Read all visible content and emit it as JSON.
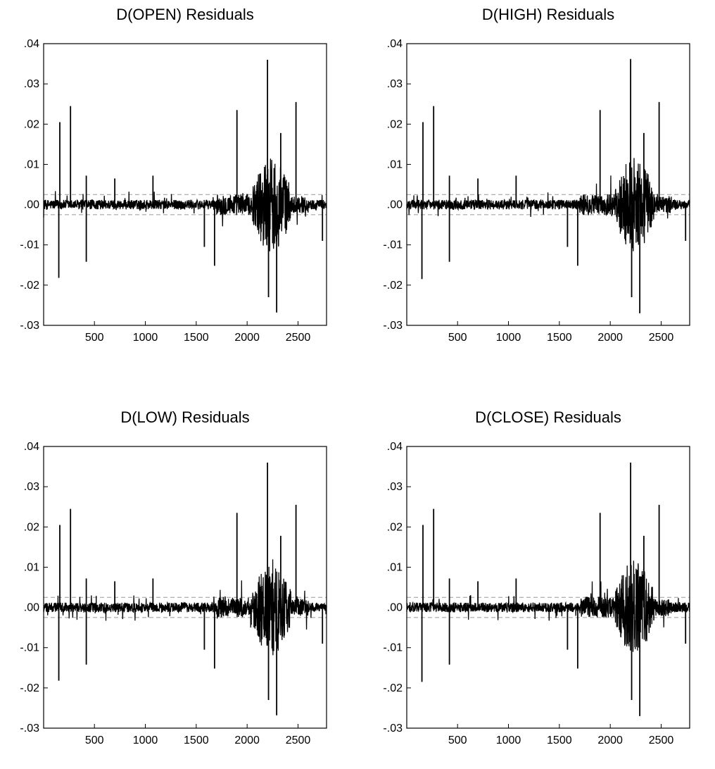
{
  "chart_data": [
    {
      "type": "line",
      "title": "D(OPEN) Residuals",
      "xlabel": "",
      "ylabel": "",
      "xlim": [
        1,
        2780
      ],
      "ylim": [
        -0.03,
        0.04
      ],
      "x_ticks": [
        500,
        1000,
        1500,
        2000,
        2500
      ],
      "x_tick_labels": [
        "500",
        "1000",
        "1500",
        "2000",
        "2500"
      ],
      "y_ticks": [
        -0.03,
        -0.02,
        -0.01,
        0.0,
        0.01,
        0.02,
        0.03,
        0.04
      ],
      "y_tick_labels": [
        "-.03",
        "-.02",
        "-.01",
        ".00",
        ".01",
        ".02",
        ".03",
        ".04"
      ],
      "reference_lines": [
        0.0025,
        -0.0025
      ],
      "series_color": "#000000",
      "reference_color": "#999999",
      "grid": false,
      "spikes": [
        [
          160,
          0.0205
        ],
        [
          150,
          -0.0182
        ],
        [
          265,
          0.0245
        ],
        [
          420,
          0.0072
        ],
        [
          420,
          -0.0142
        ],
        [
          700,
          0.0065
        ],
        [
          1075,
          0.0072
        ],
        [
          1580,
          -0.0105
        ],
        [
          1680,
          -0.0152
        ],
        [
          1900,
          0.0235
        ],
        [
          2200,
          0.036
        ],
        [
          2210,
          -0.023
        ],
        [
          2290,
          -0.0268
        ],
        [
          2330,
          0.0178
        ],
        [
          2480,
          0.0255
        ],
        [
          2740,
          -0.009
        ]
      ],
      "high_volatility_range": [
        2050,
        2430
      ],
      "high_volatility_amplitude": 0.012,
      "low_volatility_amplitude": 0.0012
    },
    {
      "type": "line",
      "title": "D(HIGH) Residuals",
      "xlabel": "",
      "ylabel": "",
      "xlim": [
        1,
        2780
      ],
      "ylim": [
        -0.03,
        0.04
      ],
      "x_ticks": [
        500,
        1000,
        1500,
        2000,
        2500
      ],
      "x_tick_labels": [
        "500",
        "1000",
        "1500",
        "2000",
        "2500"
      ],
      "y_ticks": [
        -0.03,
        -0.02,
        -0.01,
        0.0,
        0.01,
        0.02,
        0.03,
        0.04
      ],
      "y_tick_labels": [
        "-.03",
        "-.02",
        "-.01",
        ".00",
        ".01",
        ".02",
        ".03",
        ".04"
      ],
      "reference_lines": [
        0.0025,
        -0.0025
      ],
      "series_color": "#000000",
      "reference_color": "#999999",
      "grid": false,
      "spikes": [
        [
          160,
          0.0205
        ],
        [
          150,
          -0.0185
        ],
        [
          265,
          0.0245
        ],
        [
          420,
          0.0072
        ],
        [
          420,
          -0.0142
        ],
        [
          700,
          0.0065
        ],
        [
          1075,
          0.0072
        ],
        [
          1580,
          -0.0105
        ],
        [
          1680,
          -0.0152
        ],
        [
          1900,
          0.0235
        ],
        [
          2200,
          0.0362
        ],
        [
          2210,
          -0.023
        ],
        [
          2290,
          -0.027
        ],
        [
          2330,
          0.0178
        ],
        [
          2480,
          0.0255
        ],
        [
          2740,
          -0.009
        ]
      ],
      "high_volatility_range": [
        2050,
        2430
      ],
      "high_volatility_amplitude": 0.012,
      "low_volatility_amplitude": 0.0012
    },
    {
      "type": "line",
      "title": "D(LOW) Residuals",
      "xlabel": "",
      "ylabel": "",
      "xlim": [
        1,
        2780
      ],
      "ylim": [
        -0.03,
        0.04
      ],
      "x_ticks": [
        500,
        1000,
        1500,
        2000,
        2500
      ],
      "x_tick_labels": [
        "500",
        "1000",
        "1500",
        "2000",
        "2500"
      ],
      "y_ticks": [
        -0.03,
        -0.02,
        -0.01,
        0.0,
        0.01,
        0.02,
        0.03,
        0.04
      ],
      "y_tick_labels": [
        "-.03",
        "-.02",
        "-.01",
        ".00",
        ".01",
        ".02",
        ".03",
        ".04"
      ],
      "reference_lines": [
        0.0025,
        -0.0025
      ],
      "series_color": "#000000",
      "reference_color": "#999999",
      "grid": false,
      "spikes": [
        [
          160,
          0.0205
        ],
        [
          150,
          -0.0182
        ],
        [
          265,
          0.0245
        ],
        [
          420,
          0.0072
        ],
        [
          420,
          -0.0142
        ],
        [
          700,
          0.0065
        ],
        [
          1075,
          0.0072
        ],
        [
          1580,
          -0.0105
        ],
        [
          1680,
          -0.0152
        ],
        [
          1900,
          0.0235
        ],
        [
          2200,
          0.036
        ],
        [
          2210,
          -0.023
        ],
        [
          2290,
          -0.0268
        ],
        [
          2330,
          0.0178
        ],
        [
          2480,
          0.0255
        ],
        [
          2740,
          -0.009
        ]
      ],
      "high_volatility_range": [
        2050,
        2430
      ],
      "high_volatility_amplitude": 0.012,
      "low_volatility_amplitude": 0.0012
    },
    {
      "type": "line",
      "title": "D(CLOSE) Residuals",
      "xlabel": "",
      "ylabel": "",
      "xlim": [
        1,
        2780
      ],
      "ylim": [
        -0.03,
        0.04
      ],
      "x_ticks": [
        500,
        1000,
        1500,
        2000,
        2500
      ],
      "x_tick_labels": [
        "500",
        "1000",
        "1500",
        "2000",
        "2500"
      ],
      "y_ticks": [
        -0.03,
        -0.02,
        -0.01,
        0.0,
        0.01,
        0.02,
        0.03,
        0.04
      ],
      "y_tick_labels": [
        "-.03",
        "-.02",
        "-.01",
        ".00",
        ".01",
        ".02",
        ".03",
        ".04"
      ],
      "reference_lines": [
        0.0025,
        -0.0025
      ],
      "series_color": "#000000",
      "reference_color": "#999999",
      "grid": false,
      "spikes": [
        [
          160,
          0.0205
        ],
        [
          150,
          -0.0185
        ],
        [
          265,
          0.0245
        ],
        [
          420,
          0.0072
        ],
        [
          420,
          -0.0142
        ],
        [
          700,
          0.0065
        ],
        [
          1075,
          0.0072
        ],
        [
          1580,
          -0.0105
        ],
        [
          1680,
          -0.0152
        ],
        [
          1900,
          0.0235
        ],
        [
          2200,
          0.036
        ],
        [
          2210,
          -0.023
        ],
        [
          2290,
          -0.027
        ],
        [
          2330,
          0.0178
        ],
        [
          2480,
          0.0255
        ],
        [
          2740,
          -0.009
        ]
      ],
      "high_volatility_range": [
        2050,
        2430
      ],
      "high_volatility_amplitude": 0.012,
      "low_volatility_amplitude": 0.0012
    }
  ]
}
